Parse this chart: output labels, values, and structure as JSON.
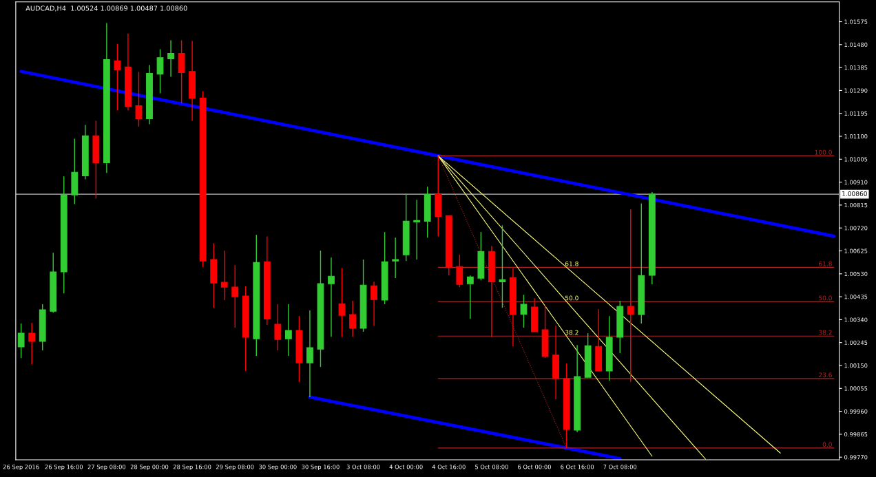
{
  "chart_data": {
    "type": "candlestick",
    "title": "AUDCAD,H4  1.00524 1.00869 1.00487 1.00860",
    "categories": [
      "26 Sep 2016",
      null,
      null,
      null,
      "26 Sep 16:00",
      null,
      null,
      null,
      "27 Sep 08:00",
      null,
      null,
      null,
      "28 Sep 00:00",
      null,
      null,
      null,
      "28 Sep 16:00",
      null,
      null,
      null,
      "29 Sep 08:00",
      null,
      null,
      null,
      "30 Sep 00:00",
      null,
      null,
      null,
      "30 Sep 16:00",
      null,
      null,
      null,
      "3 Oct 08:00",
      null,
      null,
      null,
      "4 Oct 00:00",
      null,
      null,
      null,
      "4 Oct 16:00",
      null,
      null,
      null,
      "5 Oct 08:00",
      null,
      null,
      null,
      "6 Oct 00:00",
      null,
      null,
      null,
      "6 Oct 16:00",
      null,
      null,
      null,
      "7 Oct 08:00",
      null,
      null,
      null,
      null,
      null,
      null,
      null,
      null,
      null,
      null,
      null,
      null,
      null,
      null,
      null,
      null,
      null,
      null,
      null,
      null
    ],
    "ohlc": [
      [
        1.00227,
        1.00324,
        1.00181,
        1.00284
      ],
      [
        1.00284,
        1.00327,
        1.00156,
        1.0025
      ],
      [
        1.0025,
        1.00404,
        1.00213,
        1.00381
      ],
      [
        1.00375,
        1.00617,
        1.00369,
        1.00538
      ],
      [
        1.00538,
        1.00934,
        1.00449,
        1.00857
      ],
      [
        1.00857,
        1.0109,
        1.00819,
        1.00951
      ],
      [
        1.00936,
        1.01147,
        1.00922,
        1.01102
      ],
      [
        1.01102,
        1.01164,
        1.00842,
        1.0099
      ],
      [
        1.0099,
        1.01569,
        1.00948,
        1.01418
      ],
      [
        1.01412,
        1.01483,
        1.01207,
        1.01375
      ],
      [
        1.01387,
        1.01526,
        1.01207,
        1.01224
      ],
      [
        1.01227,
        1.01367,
        1.01141,
        1.01173
      ],
      [
        1.01173,
        1.01395,
        1.0115,
        1.01361
      ],
      [
        1.01358,
        1.01461,
        1.01278,
        1.01426
      ],
      [
        1.01421,
        1.01498,
        1.01347,
        1.01444
      ],
      [
        1.01444,
        1.01498,
        1.01236,
        1.01364
      ],
      [
        1.01369,
        1.01495,
        1.01164,
        1.01258
      ],
      [
        1.01258,
        1.01287,
        1.00557,
        1.00583
      ],
      [
        1.00589,
        1.00657,
        1.00389,
        1.00492
      ],
      [
        1.00495,
        1.00626,
        1.00421,
        1.00475
      ],
      [
        1.00475,
        1.00566,
        1.00307,
        1.00435
      ],
      [
        1.00438,
        1.00478,
        1.00127,
        1.00267
      ],
      [
        1.00261,
        1.00691,
        1.0019,
        1.00577
      ],
      [
        1.0058,
        1.00685,
        1.00318,
        1.00343
      ],
      [
        1.00321,
        1.00404,
        1.00213,
        1.00258
      ],
      [
        1.00261,
        1.00404,
        1.0019,
        1.00295
      ],
      [
        1.00295,
        1.00355,
        1.00082,
        1.00161
      ],
      [
        1.00161,
        1.00378,
        1.00019,
        1.00224
      ],
      [
        1.00218,
        1.00626,
        1.00144,
        1.00489
      ],
      [
        1.00489,
        1.00597,
        1.00269,
        1.0052
      ],
      [
        1.00406,
        1.00554,
        1.00269,
        1.00358
      ],
      [
        1.00361,
        1.00418,
        1.00269,
        1.00304
      ],
      [
        1.00304,
        1.00589,
        1.0029,
        1.00483
      ],
      [
        1.0048,
        1.00497,
        1.00315,
        1.00423
      ],
      [
        1.00421,
        1.00703,
        1.00404,
        1.0058
      ],
      [
        1.00583,
        1.0068,
        1.00512,
        1.00589
      ],
      [
        1.00609,
        1.00862,
        1.00583,
        1.00748
      ],
      [
        1.00745,
        1.00837,
        1.00589,
        1.00751
      ],
      [
        1.00748,
        1.00891,
        1.0068,
        1.00859
      ],
      [
        1.00859,
        1.01019,
        1.00685,
        1.00768
      ],
      [
        1.00771,
        1.00771,
        1.00523,
        1.00557
      ],
      [
        1.0056,
        1.00609,
        1.00475,
        1.00486
      ],
      [
        1.00489,
        1.00523,
        1.00343,
        1.00517
      ],
      [
        1.00512,
        1.00703,
        1.00503,
        1.00623
      ],
      [
        1.00623,
        1.00646,
        1.00267,
        1.00497
      ],
      [
        1.00497,
        1.00731,
        1.00389,
        1.00506
      ],
      [
        1.00514,
        1.00552,
        1.00229,
        1.00361
      ],
      [
        1.00363,
        1.00443,
        1.00307,
        1.00404
      ],
      [
        1.00392,
        1.00429,
        1.0029,
        1.0029
      ],
      [
        1.00298,
        1.00401,
        1.00181,
        1.00187
      ],
      [
        1.00193,
        1.00315,
        1.0001,
        1.00096
      ],
      [
        1.00096,
        1.00158,
        0.99808,
        0.99885
      ],
      [
        0.99882,
        1.00235,
        0.99873,
        1.00104
      ],
      [
        1.00101,
        1.00284,
        1.00101,
        1.00232
      ],
      [
        1.00229,
        1.00383,
        1.00127,
        1.00127
      ],
      [
        1.00127,
        1.00355,
        1.00087,
        1.00267
      ],
      [
        1.00267,
        1.00418,
        1.00201,
        1.00395
      ],
      [
        1.00395,
        1.00797,
        1.00082,
        1.00363
      ],
      [
        1.00361,
        1.00822,
        1.00324,
        1.00523
      ],
      [
        1.00524,
        1.00869,
        1.00487,
        1.0086
      ],
      null,
      null,
      null,
      null,
      null,
      null,
      null,
      null,
      null,
      null,
      null,
      null,
      null,
      null,
      null,
      null,
      null
    ],
    "colors": [
      "#32cd32",
      "#ff0000",
      "#32cd32",
      "#32cd32",
      "#32cd32",
      "#32cd32",
      "#32cd32",
      "#ff0000",
      "#32cd32",
      "#ff0000",
      "#ff0000",
      "#ff0000",
      "#32cd32",
      "#32cd32",
      "#32cd32",
      "#ff0000",
      "#ff0000",
      "#ff0000",
      "#ff0000",
      "#ff0000",
      "#ff0000",
      "#ff0000",
      "#32cd32",
      "#ff0000",
      "#ff0000",
      "#32cd32",
      "#ff0000",
      "#32cd32",
      "#32cd32",
      "#32cd32",
      "#ff0000",
      "#ff0000",
      "#32cd32",
      "#ff0000",
      "#32cd32",
      "#32cd32",
      "#32cd32",
      "#32cd32",
      "#32cd32",
      "#ff0000",
      "#ff0000",
      "#ff0000",
      "#32cd32",
      "#32cd32",
      "#ff0000",
      "#32cd32",
      "#ff0000",
      "#32cd32",
      "#ff0000",
      "#ff0000",
      "#ff0000",
      "#ff0000",
      "#32cd32",
      "#32cd32",
      "#ff0000",
      "#32cd32",
      "#32cd32",
      "#ff0000",
      "#32cd32",
      "#32cd32",
      null,
      null,
      null,
      null,
      null,
      null,
      null,
      null,
      null,
      null,
      null,
      null,
      null,
      null,
      null,
      null,
      null
    ],
    "series": [
      {
        "type": "line",
        "color": "#0000ff",
        "line_style": "solid",
        "values": [
          1.01369,
          null,
          null,
          null,
          null,
          null,
          null,
          null,
          null,
          null,
          null,
          null,
          null,
          null,
          null,
          null,
          null,
          null,
          null,
          null,
          null,
          null,
          null,
          null,
          null,
          null,
          null,
          null,
          null,
          null,
          null,
          null,
          null,
          null,
          null,
          null,
          null,
          null,
          null,
          1.01019,
          null,
          null,
          null,
          null,
          null,
          null,
          null,
          null,
          null,
          null,
          null,
          null,
          null,
          null,
          null,
          null,
          null,
          null,
          null,
          null,
          null,
          null,
          null,
          null,
          null,
          null,
          null,
          null,
          null,
          null,
          null,
          null,
          null,
          null,
          null,
          null,
          1.00686
        ]
      },
      {
        "type": "line",
        "color": "#0000ff",
        "line_style": "solid",
        "values": [
          null,
          null,
          null,
          null,
          null,
          null,
          null,
          null,
          null,
          null,
          null,
          null,
          null,
          null,
          null,
          null,
          null,
          null,
          null,
          null,
          null,
          null,
          null,
          null,
          null,
          null,
          null,
          1.00019,
          null,
          null,
          null,
          null,
          null,
          null,
          null,
          null,
          null,
          null,
          null,
          null,
          null,
          null,
          null,
          null,
          null,
          null,
          null,
          null,
          null,
          null,
          null,
          0.99808,
          null,
          null,
          null,
          null,
          0.99764,
          null,
          null,
          null,
          null,
          null,
          null,
          null,
          null,
          null,
          null,
          null,
          null,
          null,
          null,
          null,
          null,
          null,
          null,
          null,
          null
        ]
      },
      {
        "type": "line",
        "name": "100.0",
        "color": "#b22222",
        "line_style": "solid",
        "values": [
          null,
          null,
          null,
          null,
          null,
          null,
          null,
          null,
          null,
          null,
          null,
          null,
          null,
          null,
          null,
          null,
          null,
          null,
          null,
          null,
          null,
          null,
          null,
          null,
          null,
          null,
          null,
          null,
          null,
          null,
          null,
          null,
          null,
          null,
          null,
          null,
          null,
          null,
          null,
          1.01019,
          null,
          null,
          null,
          null,
          null,
          null,
          null,
          null,
          null,
          null,
          null,
          null,
          null,
          null,
          null,
          null,
          null,
          null,
          null,
          null,
          null,
          null,
          null,
          null,
          null,
          null,
          null,
          null,
          null,
          null,
          null,
          null,
          null,
          null,
          null,
          null,
          1.01019
        ]
      },
      {
        "type": "line",
        "name": "61.8",
        "color": "#b22222",
        "line_style": "solid",
        "values": [
          null,
          null,
          null,
          null,
          null,
          null,
          null,
          null,
          null,
          null,
          null,
          null,
          null,
          null,
          null,
          null,
          null,
          null,
          null,
          null,
          null,
          null,
          null,
          null,
          null,
          null,
          null,
          null,
          null,
          null,
          null,
          null,
          null,
          null,
          null,
          null,
          null,
          null,
          null,
          1.00557,
          null,
          null,
          null,
          null,
          null,
          null,
          null,
          null,
          null,
          null,
          null,
          null,
          null,
          null,
          null,
          null,
          null,
          null,
          null,
          null,
          null,
          null,
          null,
          null,
          null,
          null,
          null,
          null,
          null,
          null,
          null,
          null,
          null,
          null,
          null,
          null,
          1.00557
        ]
      },
      {
        "type": "line",
        "name": "50.0",
        "color": "#b22222",
        "line_style": "solid",
        "values": [
          null,
          null,
          null,
          null,
          null,
          null,
          null,
          null,
          null,
          null,
          null,
          null,
          null,
          null,
          null,
          null,
          null,
          null,
          null,
          null,
          null,
          null,
          null,
          null,
          null,
          null,
          null,
          null,
          null,
          null,
          null,
          null,
          null,
          null,
          null,
          null,
          null,
          null,
          null,
          1.00415,
          null,
          null,
          null,
          null,
          null,
          null,
          null,
          null,
          null,
          null,
          null,
          null,
          null,
          null,
          null,
          null,
          null,
          null,
          null,
          null,
          null,
          null,
          null,
          null,
          null,
          null,
          null,
          null,
          null,
          null,
          null,
          null,
          null,
          null,
          null,
          null,
          1.00415
        ]
      },
      {
        "type": "line",
        "name": "38.2",
        "color": "#b22222",
        "line_style": "solid",
        "values": [
          null,
          null,
          null,
          null,
          null,
          null,
          null,
          null,
          null,
          null,
          null,
          null,
          null,
          null,
          null,
          null,
          null,
          null,
          null,
          null,
          null,
          null,
          null,
          null,
          null,
          null,
          null,
          null,
          null,
          null,
          null,
          null,
          null,
          null,
          null,
          null,
          null,
          null,
          null,
          1.00272,
          null,
          null,
          null,
          null,
          null,
          null,
          null,
          null,
          null,
          null,
          null,
          null,
          null,
          null,
          null,
          null,
          null,
          null,
          null,
          null,
          null,
          null,
          null,
          null,
          null,
          null,
          null,
          null,
          null,
          null,
          null,
          null,
          null,
          null,
          null,
          null,
          1.00272
        ]
      },
      {
        "type": "line",
        "name": "23.6",
        "color": "#b22222",
        "line_style": "solid",
        "values": [
          null,
          null,
          null,
          null,
          null,
          null,
          null,
          null,
          null,
          null,
          null,
          null,
          null,
          null,
          null,
          null,
          null,
          null,
          null,
          null,
          null,
          null,
          null,
          null,
          null,
          null,
          null,
          null,
          null,
          null,
          null,
          null,
          null,
          null,
          null,
          null,
          null,
          null,
          null,
          1.00096,
          null,
          null,
          null,
          null,
          null,
          null,
          null,
          null,
          null,
          null,
          null,
          null,
          null,
          null,
          null,
          null,
          null,
          null,
          null,
          null,
          null,
          null,
          null,
          null,
          null,
          null,
          null,
          null,
          null,
          null,
          null,
          null,
          null,
          null,
          null,
          null,
          1.00096
        ]
      },
      {
        "type": "line",
        "name": "0.0",
        "color": "#b22222",
        "line_style": "solid",
        "values": [
          null,
          null,
          null,
          null,
          null,
          null,
          null,
          null,
          null,
          null,
          null,
          null,
          null,
          null,
          null,
          null,
          null,
          null,
          null,
          null,
          null,
          null,
          null,
          null,
          null,
          null,
          null,
          null,
          null,
          null,
          null,
          null,
          null,
          null,
          null,
          null,
          null,
          null,
          null,
          0.99808,
          null,
          null,
          null,
          null,
          null,
          null,
          null,
          null,
          null,
          null,
          null,
          null,
          null,
          null,
          null,
          null,
          null,
          null,
          null,
          null,
          null,
          null,
          null,
          null,
          null,
          null,
          null,
          null,
          null,
          null,
          null,
          null,
          null,
          null,
          null,
          null,
          0.99808
        ]
      },
      {
        "type": "line",
        "color": "#b22222",
        "line_style": "dotted",
        "values": [
          null,
          null,
          null,
          null,
          null,
          null,
          null,
          null,
          null,
          null,
          null,
          null,
          null,
          null,
          null,
          null,
          null,
          null,
          null,
          null,
          null,
          null,
          null,
          null,
          null,
          null,
          null,
          null,
          null,
          null,
          null,
          null,
          null,
          null,
          null,
          null,
          null,
          null,
          null,
          1.01019,
          null,
          null,
          null,
          null,
          null,
          null,
          null,
          null,
          null,
          null,
          null,
          0.99808,
          null,
          null,
          null,
          null,
          null,
          null,
          null,
          null,
          null,
          null,
          null,
          null,
          null,
          null,
          null,
          null,
          null,
          null,
          null,
          null,
          null,
          null,
          null,
          null,
          null
        ]
      },
      {
        "type": "line",
        "name": "61.8",
        "color": "#ffff80",
        "line_style": "solid",
        "values": [
          null,
          null,
          null,
          null,
          null,
          null,
          null,
          null,
          null,
          null,
          null,
          null,
          null,
          null,
          null,
          null,
          null,
          null,
          null,
          null,
          null,
          null,
          null,
          null,
          null,
          null,
          null,
          null,
          null,
          null,
          null,
          null,
          null,
          null,
          null,
          null,
          null,
          null,
          null,
          1.01019,
          null,
          null,
          null,
          null,
          null,
          null,
          null,
          null,
          null,
          null,
          null,
          1.00557,
          null,
          null,
          null,
          null,
          null,
          null,
          null,
          null,
          null,
          null,
          null,
          null,
          null,
          null,
          null,
          null,
          null,
          null,
          null,
          0.99787,
          null,
          null,
          null,
          null,
          null
        ]
      },
      {
        "type": "line",
        "name": "50.0",
        "color": "#ffff80",
        "line_style": "solid",
        "values": [
          null,
          null,
          null,
          null,
          null,
          null,
          null,
          null,
          null,
          null,
          null,
          null,
          null,
          null,
          null,
          null,
          null,
          null,
          null,
          null,
          null,
          null,
          null,
          null,
          null,
          null,
          null,
          null,
          null,
          null,
          null,
          null,
          null,
          null,
          null,
          null,
          null,
          null,
          null,
          1.01019,
          null,
          null,
          null,
          null,
          null,
          null,
          null,
          null,
          null,
          null,
          null,
          1.00415,
          null,
          null,
          null,
          null,
          null,
          null,
          null,
          null,
          null,
          null,
          null,
          null,
          0.99762,
          null,
          null,
          null,
          null,
          null,
          null,
          null,
          null,
          null,
          null,
          null,
          null
        ]
      },
      {
        "type": "line",
        "name": "38.2",
        "color": "#ffff80",
        "line_style": "solid",
        "values": [
          null,
          null,
          null,
          null,
          null,
          null,
          null,
          null,
          null,
          null,
          null,
          null,
          null,
          null,
          null,
          null,
          null,
          null,
          null,
          null,
          null,
          null,
          null,
          null,
          null,
          null,
          null,
          null,
          null,
          null,
          null,
          null,
          null,
          null,
          null,
          null,
          null,
          null,
          null,
          1.01019,
          null,
          null,
          null,
          null,
          null,
          null,
          null,
          null,
          null,
          null,
          null,
          1.00272,
          null,
          null,
          null,
          null,
          null,
          null,
          null,
          0.99774,
          null,
          null,
          null,
          null,
          null,
          null,
          null,
          null,
          null,
          null,
          null,
          null,
          null,
          null,
          null,
          null,
          null
        ]
      }
    ],
    "ref_lines": [
      {
        "axis": "y",
        "value": 1.0086,
        "label": "1.00860",
        "color": "#c0c0c0"
      }
    ],
    "ylim": [
      0.99759,
      1.01657
    ],
    "yticks": [
      {
        "value": 1.01575,
        "label": "1.01575"
      },
      {
        "value": 1.0148,
        "label": "1.01480"
      },
      {
        "value": 1.01385,
        "label": "1.01385"
      },
      {
        "value": 1.0129,
        "label": "1.01290"
      },
      {
        "value": 1.01195,
        "label": "1.01195"
      },
      {
        "value": 1.011,
        "label": "1.01100"
      },
      {
        "value": 1.01005,
        "label": "1.01005"
      },
      {
        "value": 1.0091,
        "label": "1.00910"
      },
      {
        "value": 1.00815,
        "label": "1.00815"
      },
      {
        "value": 1.0072,
        "label": "1.00720"
      },
      {
        "value": 1.00625,
        "label": "1.00625"
      },
      {
        "value": 1.0053,
        "label": "1.00530"
      },
      {
        "value": 1.00435,
        "label": "1.00435"
      },
      {
        "value": 1.0034,
        "label": "1.00340"
      },
      {
        "value": 1.00245,
        "label": "1.00245"
      },
      {
        "value": 1.0015,
        "label": "1.00150"
      },
      {
        "value": 1.00055,
        "label": "1.00055"
      },
      {
        "value": 0.9996,
        "label": "0.99960"
      },
      {
        "value": 0.99865,
        "label": "0.99865"
      },
      {
        "value": 0.9977,
        "label": "0.99770"
      }
    ]
  }
}
